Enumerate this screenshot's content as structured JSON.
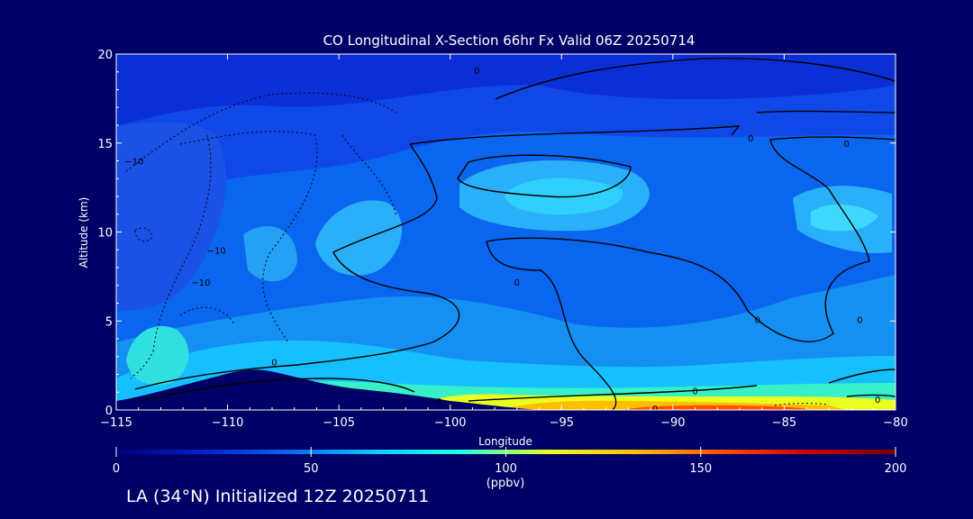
{
  "chart_data": {
    "type": "heatmap",
    "title": "CO Longitudinal X-Section 66hr  Fx Valid 06Z 20250714",
    "xlabel": "Longitude",
    "ylabel": "Altitude (km)",
    "xlim": [
      -115,
      -80
    ],
    "ylim": [
      0,
      20
    ],
    "x_ticks": [
      -115,
      -110,
      -105,
      -100,
      -95,
      -90,
      -85,
      -80
    ],
    "x_tick_labels": [
      "−115",
      "−110",
      "−105",
      "−100",
      "−95",
      "−90",
      "−85",
      "−80"
    ],
    "y_ticks": [
      0,
      5,
      10,
      15,
      20
    ],
    "y_tick_labels": [
      "0",
      "5",
      "10",
      "15",
      "20"
    ],
    "colorbar": {
      "label": "(ppbv)",
      "range": [
        0,
        200
      ],
      "ticks": [
        0,
        50,
        100,
        150,
        200
      ],
      "tick_labels": [
        "0",
        "50",
        "100",
        "150",
        "200"
      ],
      "colors": [
        "#00007a",
        "#0022cc",
        "#0a66ee",
        "#10c8ff",
        "#26ffe0",
        "#e8ff20",
        "#ffbe00",
        "#ff5000",
        "#d00000",
        "#780000"
      ]
    },
    "contour_labels": [
      {
        "text": "0",
        "x": -97,
        "y": 7.2
      },
      {
        "text": "0",
        "x": -107.9,
        "y": 2.7
      },
      {
        "text": "0",
        "x": -100.5,
        "y": 0.5
      },
      {
        "text": "0",
        "x": -89,
        "y": 1.1
      },
      {
        "text": "0",
        "x": -86.2,
        "y": 5.1
      },
      {
        "text": "0",
        "x": -81.6,
        "y": 5.1
      },
      {
        "text": "0",
        "x": -80.8,
        "y": 0.6
      },
      {
        "text": "0",
        "x": -98.8,
        "y": 19.1
      },
      {
        "text": "0",
        "x": -82.2,
        "y": 15.0
      },
      {
        "text": "0",
        "x": -86.5,
        "y": 15.3
      },
      {
        "text": "0",
        "x": -90.8,
        "y": 0.1
      },
      {
        "text": "−10",
        "x": -110.5,
        "y": 9.0
      },
      {
        "text": "−10",
        "x": -111.2,
        "y": 7.2
      },
      {
        "text": "−10",
        "x": -114.2,
        "y": 14.0
      }
    ]
  },
  "footer": {
    "text": "LA (34°N) Initialized 12Z 20250711"
  }
}
